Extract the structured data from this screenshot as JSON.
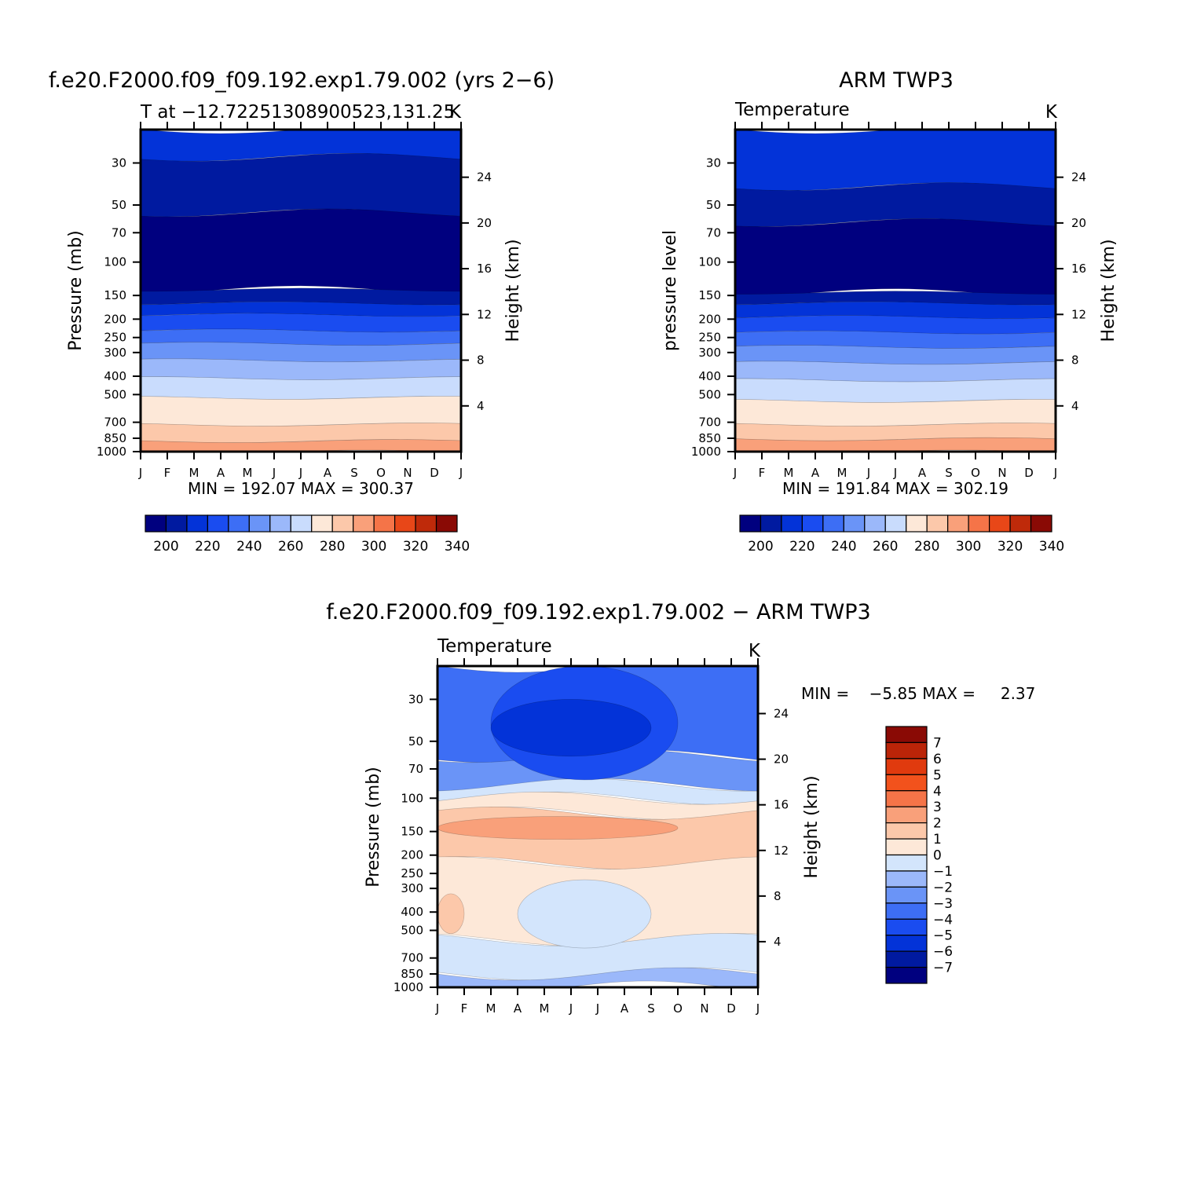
{
  "colors": {
    "abs_palette": [
      "#00007f",
      "#001aa0",
      "#0333d8",
      "#1a4cf0",
      "#3d6ef5",
      "#6a94f7",
      "#9bb8fa",
      "#c9dcfd",
      "#fde8d8",
      "#fcc8aa",
      "#f9a07a",
      "#f57448",
      "#e84718",
      "#bf2a0a",
      "#8a0a05"
    ],
    "diff_palette": [
      "#00007f",
      "#001aa0",
      "#0333d8",
      "#1a4cf0",
      "#3d6ef5",
      "#6a94f7",
      "#9bb8fa",
      "#d3e5fc",
      "#fde8d8",
      "#fcc8aa",
      "#f9a07a",
      "#f57448",
      "#f2521c",
      "#e03a0e",
      "#bb2408",
      "#8a0a05"
    ]
  },
  "chart_data": [
    {
      "type": "heatmap",
      "title": "f.e20.F2000.f09_f09.192.exp1.79.002 (yrs 2−6)",
      "left_label": "T at −12.72251308900523,131.25",
      "right_label": "K",
      "xlabel": "",
      "ylabel": "Pressure (mb)",
      "ylabel_right": "Height (km)",
      "x_ticks": [
        "J",
        "F",
        "M",
        "A",
        "M",
        "J",
        "J",
        "A",
        "S",
        "O",
        "N",
        "D",
        "J"
      ],
      "y_ticks": [
        30,
        50,
        70,
        100,
        150,
        200,
        250,
        300,
        400,
        500,
        700,
        850,
        1000
      ],
      "y_range_mb": [
        20,
        1000
      ],
      "y2_ticks": [
        4,
        8,
        12,
        16,
        20,
        24
      ],
      "min_max_text": "MIN = 192.07 MAX = 300.37",
      "levels": [
        200,
        210,
        220,
        230,
        240,
        250,
        260,
        270,
        280,
        290,
        300,
        310,
        320,
        330,
        340
      ],
      "colorbar_labels": [
        "200",
        "220",
        "240",
        "260",
        "280",
        "300",
        "320",
        "340"
      ],
      "boundaries_mb": [
        20,
        27,
        55,
        140,
        165,
        190,
        230,
        270,
        330,
        400,
        530,
        700,
        850,
        1000
      ],
      "bands": [
        {
          "level": "210-220",
          "top_mb": 20,
          "bottom_mb": 28
        },
        {
          "level": "200-210",
          "top_mb": 28,
          "bottom_mb": 55
        },
        {
          "level": "< 200",
          "top_mb": 55,
          "bottom_mb": 140
        },
        {
          "level": "200-210",
          "top_mb": 140,
          "bottom_mb": 165
        },
        {
          "level": "210-220",
          "top_mb": 165,
          "bottom_mb": 190
        },
        {
          "level": "220-230",
          "top_mb": 190,
          "bottom_mb": 230
        },
        {
          "level": "230-240",
          "top_mb": 230,
          "bottom_mb": 270
        },
        {
          "level": "240-250",
          "top_mb": 270,
          "bottom_mb": 330
        },
        {
          "level": "250-260",
          "top_mb": 330,
          "bottom_mb": 410
        },
        {
          "level": "260-270",
          "top_mb": 410,
          "bottom_mb": 520
        },
        {
          "level": "270-280",
          "top_mb": 520,
          "bottom_mb": 720
        },
        {
          "level": "280-290",
          "top_mb": 720,
          "bottom_mb": 880
        },
        {
          "level": "290-300",
          "top_mb": 880,
          "bottom_mb": 1000
        }
      ]
    },
    {
      "type": "heatmap",
      "title": "ARM TWP3",
      "left_label": "Temperature",
      "right_label": "K",
      "xlabel": "",
      "ylabel": "pressure level",
      "ylabel_right": "Height (km)",
      "x_ticks": [
        "J",
        "F",
        "M",
        "A",
        "M",
        "J",
        "J",
        "A",
        "S",
        "O",
        "N",
        "D",
        "J"
      ],
      "y_ticks": [
        30,
        50,
        70,
        100,
        150,
        200,
        250,
        300,
        400,
        500,
        700,
        850,
        1000
      ],
      "y_range_mb": [
        20,
        1000
      ],
      "y2_ticks": [
        4,
        8,
        12,
        16,
        20,
        24
      ],
      "min_max_text": "MIN = 191.84 MAX = 302.19",
      "levels": [
        200,
        210,
        220,
        230,
        240,
        250,
        260,
        270,
        280,
        290,
        300,
        310,
        320,
        330,
        340
      ],
      "colorbar_labels": [
        "200",
        "220",
        "240",
        "260",
        "280",
        "300",
        "320",
        "340"
      ],
      "bands": [
        {
          "level": "210-220",
          "top_mb": 20,
          "bottom_mb": 40
        },
        {
          "level": "200-210",
          "top_mb": 40,
          "bottom_mb": 62
        },
        {
          "level": "< 200",
          "top_mb": 62,
          "bottom_mb": 145
        },
        {
          "level": "200-210",
          "top_mb": 145,
          "bottom_mb": 165
        },
        {
          "level": "210-220",
          "top_mb": 165,
          "bottom_mb": 195
        },
        {
          "level": "220-230",
          "top_mb": 195,
          "bottom_mb": 235
        },
        {
          "level": "230-240",
          "top_mb": 235,
          "bottom_mb": 280
        },
        {
          "level": "240-250",
          "top_mb": 280,
          "bottom_mb": 340
        },
        {
          "level": "250-260",
          "top_mb": 340,
          "bottom_mb": 420
        },
        {
          "level": "260-270",
          "top_mb": 420,
          "bottom_mb": 540
        },
        {
          "level": "270-280",
          "top_mb": 540,
          "bottom_mb": 720
        },
        {
          "level": "280-290",
          "top_mb": 720,
          "bottom_mb": 860
        },
        {
          "level": "290-300",
          "top_mb": 860,
          "bottom_mb": 1000
        }
      ]
    },
    {
      "type": "heatmap",
      "title": "f.e20.F2000.f09_f09.192.exp1.79.002 − ARM TWP3",
      "left_label": "Temperature",
      "right_label": "K",
      "xlabel": "",
      "ylabel": "Pressure (mb)",
      "ylabel_right": "Height (km)",
      "x_ticks": [
        "J",
        "F",
        "M",
        "A",
        "M",
        "J",
        "J",
        "A",
        "S",
        "O",
        "N",
        "D",
        "J"
      ],
      "y_ticks": [
        30,
        50,
        70,
        100,
        150,
        200,
        250,
        300,
        400,
        500,
        700,
        850,
        1000
      ],
      "y_range_mb": [
        20,
        1000
      ],
      "y2_ticks": [
        4,
        8,
        12,
        16,
        20,
        24
      ],
      "min_max_text": "MIN =    −5.85 MAX =     2.37",
      "levels": [
        -7,
        -6,
        -5,
        -4,
        -3,
        -2,
        -1,
        0,
        1,
        2,
        3,
        4,
        5,
        6,
        7
      ],
      "colorbar_labels": [
        "7",
        "6",
        "5",
        "4",
        "3",
        "2",
        "1",
        "0",
        "−1",
        "−2",
        "−3",
        "−4",
        "−5",
        "−6",
        "−7"
      ],
      "bands": [
        {
          "level": "-4 to -3",
          "top_mb": 20,
          "bottom_mb": 60
        },
        {
          "level": "-3 to -2",
          "top_mb": 60,
          "bottom_mb": 85
        },
        {
          "level": "-1 to 0",
          "top_mb": 85,
          "bottom_mb": 100
        },
        {
          "level": "0 to 1",
          "top_mb": 100,
          "bottom_mb": 120
        },
        {
          "level": "1 to 2",
          "top_mb": 120,
          "bottom_mb": 220
        },
        {
          "level": "0 to 1",
          "top_mb": 220,
          "bottom_mb": 560
        },
        {
          "level": "-1 to 0",
          "top_mb": 560,
          "bottom_mb": 850
        },
        {
          "level": "-2 to -1",
          "top_mb": 850,
          "bottom_mb": 1000
        }
      ],
      "features": [
        {
          "level": "-5 to -4",
          "month_range": [
            "M",
            "O"
          ],
          "pressure_mb": [
            20,
            80
          ]
        },
        {
          "level": "-6 to -5",
          "month_range": [
            "M",
            "S"
          ],
          "pressure_mb": [
            30,
            60
          ]
        },
        {
          "level": "2 to 3",
          "month_range": [
            "J",
            "O"
          ],
          "pressure_mb": [
            125,
            165
          ]
        },
        {
          "level": "-1 to 0",
          "month_range": [
            "A",
            "S"
          ],
          "pressure_mb": [
            270,
            620
          ]
        },
        {
          "level": "1 to 2",
          "month_range": [
            "J",
            "F"
          ],
          "pressure_mb": [
            320,
            520
          ]
        }
      ]
    }
  ]
}
